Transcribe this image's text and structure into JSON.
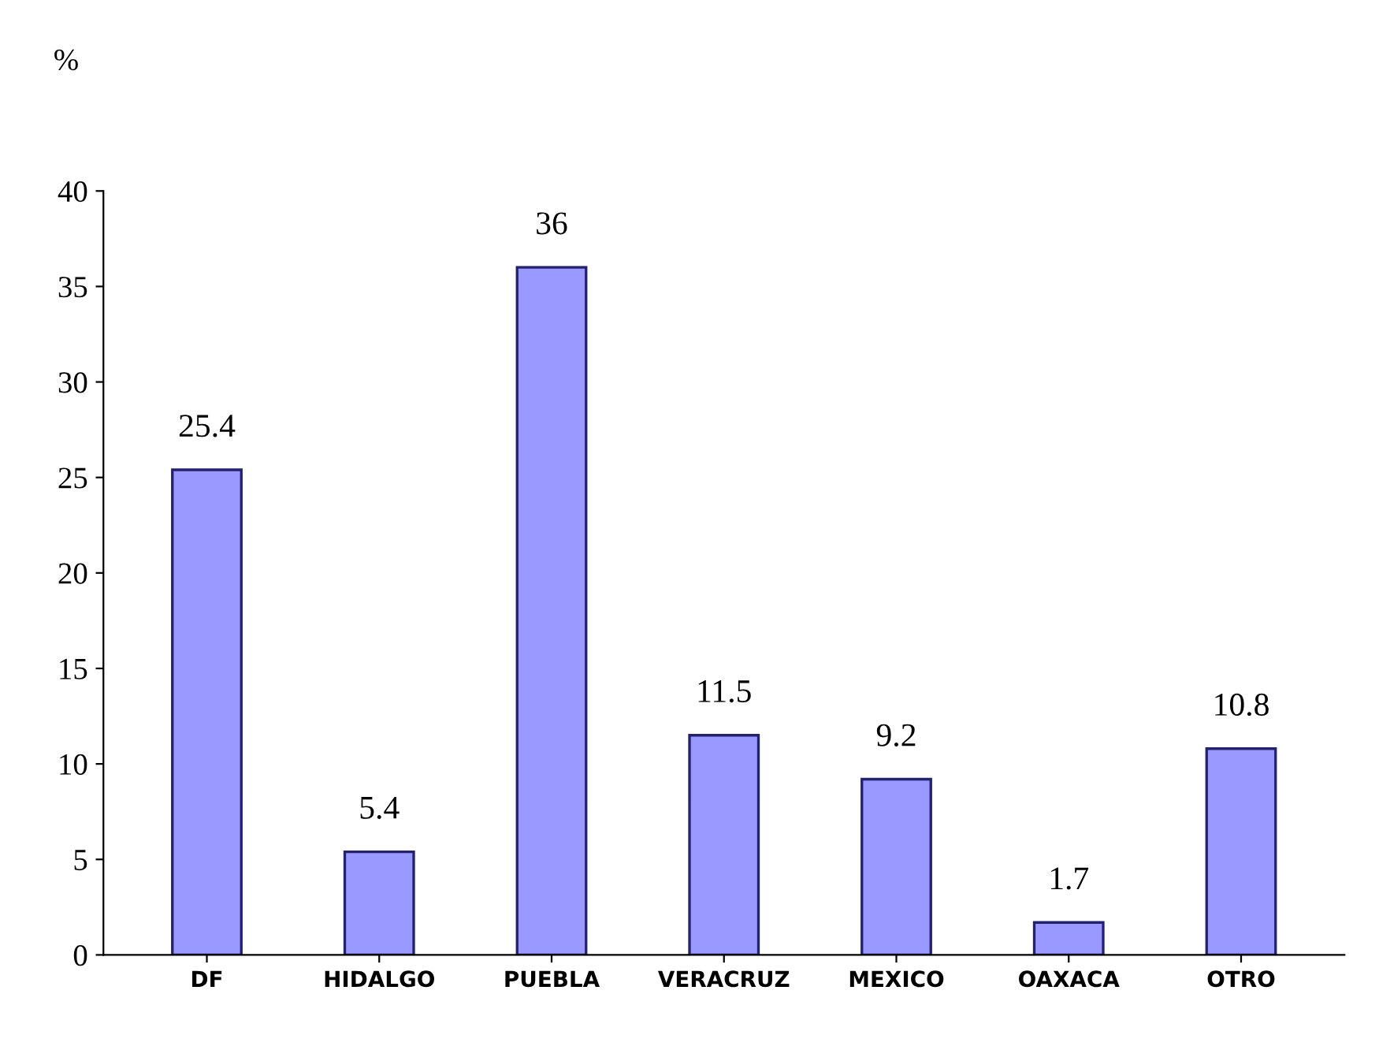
{
  "chart_data": {
    "type": "bar",
    "ylabel": "%",
    "categories": [
      "DF",
      "HIDALGO",
      "PUEBLA",
      "VERACRUZ",
      "MEXICO",
      "OAXACA",
      "OTRO"
    ],
    "values": [
      25.4,
      5.4,
      36,
      11.5,
      9.2,
      1.7,
      10.8
    ],
    "color": "#9999ff",
    "ylim": [
      0,
      40
    ],
    "yticks": [
      0,
      5,
      10,
      15,
      20,
      25,
      30,
      35,
      40
    ],
    "data_labels": true,
    "grid": false,
    "legend": false
  }
}
